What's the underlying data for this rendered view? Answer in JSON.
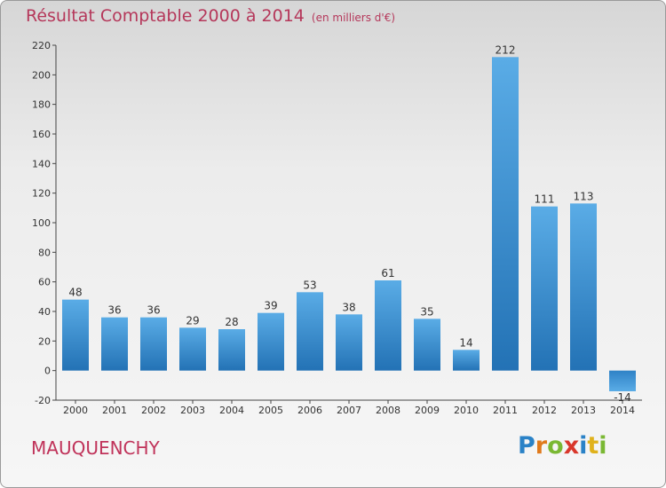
{
  "title": "Résultat Comptable 2000 à 2014",
  "subtitle": "(en milliers d'€)",
  "commune": "MAUQUENCHY",
  "logo": {
    "letters": [
      "P",
      "r",
      "o",
      "x",
      "i",
      "t",
      "i"
    ],
    "colors": [
      "#2a82c7",
      "#e07a1c",
      "#7ab833",
      "#d9372b",
      "#2a82c7",
      "#e0b21c",
      "#7ab833"
    ]
  },
  "colors": {
    "bar": "#3d93d8",
    "bar_dark": "#2272b4",
    "title": "#b5375a",
    "axis": "#555555"
  },
  "chart_data": {
    "type": "bar",
    "title": "Résultat Comptable 2000 à 2014",
    "subtitle": "(en milliers d'€)",
    "categories": [
      "2000",
      "2001",
      "2002",
      "2003",
      "2004",
      "2005",
      "2006",
      "2007",
      "2008",
      "2009",
      "2010",
      "2011",
      "2012",
      "2013",
      "2014"
    ],
    "values": [
      48,
      36,
      36,
      29,
      28,
      39,
      53,
      38,
      61,
      35,
      14,
      212,
      111,
      113,
      -14
    ],
    "labels": [
      "48",
      "36",
      "36",
      "29",
      "28",
      "39",
      "53",
      "38",
      "61",
      "35",
      "14",
      "212",
      "111",
      "113",
      "-14"
    ],
    "ylim": [
      -20,
      220
    ],
    "yticks": [
      -20,
      0,
      20,
      40,
      60,
      80,
      100,
      120,
      140,
      160,
      180,
      200,
      220
    ],
    "grid": false,
    "legend": "none"
  }
}
